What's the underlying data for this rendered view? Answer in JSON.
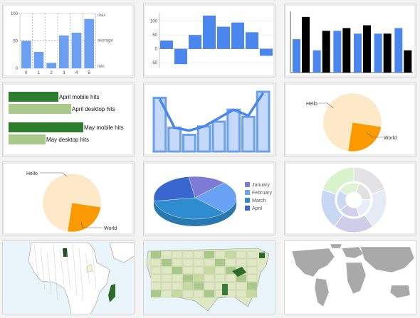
{
  "chart_data": [
    {
      "type": "bar",
      "categories": [
        "0",
        "1",
        "2",
        "3",
        "4",
        "5"
      ],
      "values": [
        50,
        30,
        10,
        60,
        65,
        90
      ],
      "ylim": [
        0,
        100
      ],
      "y_ticks": [
        "0",
        "50",
        "100"
      ],
      "reference_labels": [
        {
          "label": "max",
          "value": 100
        },
        {
          "label": "average",
          "value": 51
        },
        {
          "label": "min",
          "value": 0
        }
      ],
      "color": "#6a9ff2"
    },
    {
      "type": "bar",
      "values": [
        30,
        -55,
        50,
        120,
        80,
        95,
        60,
        -25
      ],
      "ylim": [
        -70,
        130
      ],
      "y_ticks": [
        "100",
        "50",
        "0",
        "-50"
      ],
      "color": "#4a86ee"
    },
    {
      "type": "bar",
      "series_colors": [
        "#4a86ee",
        "#000000"
      ],
      "values_a": [
        60,
        40,
        75,
        70,
        70,
        80
      ],
      "values_b": [
        100,
        75,
        80,
        85,
        70,
        40
      ],
      "ylim": [
        0,
        110
      ]
    },
    {
      "type": "bar",
      "orientation": "horizontal",
      "labels": [
        "April mobile hits",
        "April desktop hits",
        "May mobile hits",
        "May desktop hits"
      ],
      "values": [
        70,
        88,
        105,
        52
      ],
      "colors": [
        "#2e7d2e",
        "#a8c98a",
        "#2e7d2e",
        "#a8c98a"
      ]
    },
    {
      "type": "bar",
      "values": [
        90,
        40,
        28,
        42,
        50,
        70,
        58,
        100
      ],
      "line_values": [
        88,
        40,
        35,
        42,
        56,
        70,
        60,
        98
      ],
      "color": "#6a9ff2",
      "line_color": "#4a86ee"
    },
    {
      "type": "pie",
      "slices": [
        {
          "label": "Hello",
          "value": 75,
          "color": "#fde8c8"
        },
        {
          "label": "World",
          "value": 25,
          "color": "#fa9a00"
        }
      ]
    },
    {
      "type": "pie",
      "slices": [
        {
          "label": "Hello",
          "value": 75,
          "color": "#fde8c8"
        },
        {
          "label": "World",
          "value": 25,
          "color": "#fa9a00"
        }
      ]
    },
    {
      "type": "pie",
      "variant": "3d",
      "slices": [
        {
          "label": "January",
          "value": 15,
          "color": "#7e7bd6"
        },
        {
          "label": "February",
          "value": 25,
          "color": "#69a2f5"
        },
        {
          "label": "March",
          "value": 35,
          "color": "#2f8dcf"
        },
        {
          "label": "April",
          "value": 25,
          "color": "#3a67cf"
        }
      ]
    },
    {
      "type": "pie",
      "variant": "ring",
      "outer_colors": [
        "#e3e3e6",
        "#e5ebf5",
        "#cfcde9",
        "#c8d8f4",
        "#d8f2cc"
      ],
      "inner_colors": [
        "#e1e1e3",
        "#e7eef8",
        "#d2d0ea",
        "#cadaf5",
        "#ddf3d2"
      ],
      "outer_values": [
        20,
        20,
        20,
        20,
        20
      ],
      "inner_values": [
        20,
        20,
        20,
        20,
        20
      ]
    },
    {
      "type": "map",
      "region": "Africa",
      "highlight_color": "#1d4d1d",
      "base_color": "#ffffff",
      "water_color": "#eaf4fb"
    },
    {
      "type": "map",
      "region": "United States",
      "base_color": "#dfe8c4",
      "mid_color": "#a8c98a",
      "dark_color": "#2d6b2d",
      "water_color": "#eaf4fb"
    },
    {
      "type": "map",
      "region": "World",
      "land_color": "#a9a9a9",
      "water_color": "#ffffff"
    }
  ]
}
